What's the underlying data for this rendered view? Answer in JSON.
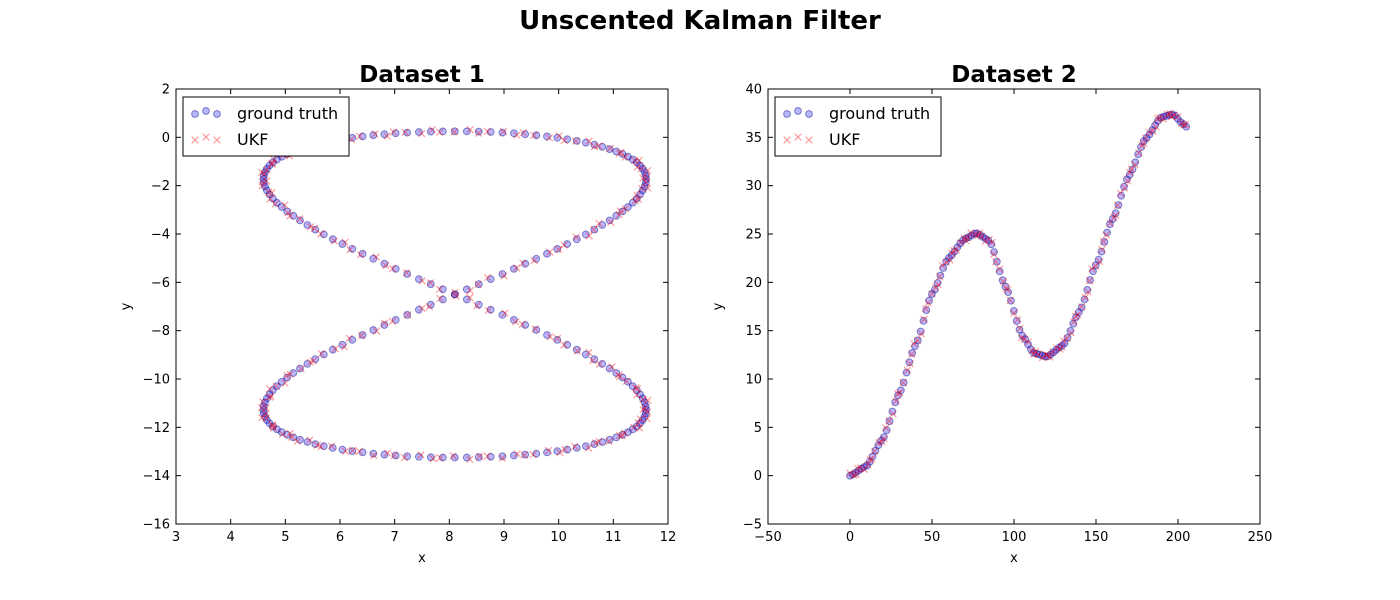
{
  "figure_title": "Unscented Kalman Filter",
  "colors": {
    "ground_truth": "#0000ff",
    "ground_truth_edge": "#000080",
    "ukf": "#ff0000"
  },
  "chart_data": [
    {
      "type": "scatter",
      "title": "Dataset 1",
      "xlabel": "x",
      "ylabel": "y",
      "xlim": [
        3,
        12
      ],
      "ylim": [
        -16,
        2
      ],
      "xticks": [
        "3",
        "4",
        "5",
        "6",
        "7",
        "8",
        "9",
        "10",
        "11",
        "12"
      ],
      "yticks": [
        "−16",
        "−14",
        "−12",
        "−10",
        "−8",
        "−6",
        "−4",
        "−2",
        "0",
        "2"
      ],
      "legend_position": "top-left",
      "legend": [
        "ground truth",
        "UKF"
      ],
      "curve": {
        "shape": "figure-eight",
        "center": [
          8.1,
          -6.5
        ],
        "x_half_width": 3.5,
        "y_half_height": 6.75,
        "points": 200
      },
      "series": [
        {
          "name": "ground truth",
          "marker": "circle"
        },
        {
          "name": "UKF",
          "marker": "x"
        }
      ]
    },
    {
      "type": "scatter",
      "title": "Dataset 2",
      "xlabel": "x",
      "ylabel": "y",
      "xlim": [
        -50,
        250
      ],
      "ylim": [
        -5,
        40
      ],
      "xticks": [
        "−50",
        "0",
        "50",
        "100",
        "150",
        "200",
        "250"
      ],
      "yticks": [
        "−5",
        "0",
        "5",
        "10",
        "15",
        "20",
        "25",
        "30",
        "35",
        "40"
      ],
      "legend_position": "top-left",
      "legend": [
        "ground truth",
        "UKF"
      ],
      "knots": [
        [
          0,
          0
        ],
        [
          10,
          1
        ],
        [
          20,
          3.8
        ],
        [
          30,
          8.5
        ],
        [
          40,
          13.5
        ],
        [
          50,
          18.8
        ],
        [
          60,
          22.5
        ],
        [
          70,
          24.5
        ],
        [
          77,
          25.1
        ],
        [
          85,
          24.3
        ],
        [
          95,
          19.5
        ],
        [
          105,
          14.5
        ],
        [
          112,
          12.7
        ],
        [
          120,
          12.3
        ],
        [
          130,
          13.5
        ],
        [
          140,
          17
        ],
        [
          150,
          21.8
        ],
        [
          160,
          26.5
        ],
        [
          170,
          31
        ],
        [
          180,
          34.8
        ],
        [
          190,
          37.1
        ],
        [
          197,
          37.4
        ],
        [
          203,
          36.4
        ],
        [
          205,
          36.1
        ]
      ],
      "series": [
        {
          "name": "ground truth",
          "marker": "circle"
        },
        {
          "name": "UKF",
          "marker": "x"
        }
      ]
    }
  ]
}
